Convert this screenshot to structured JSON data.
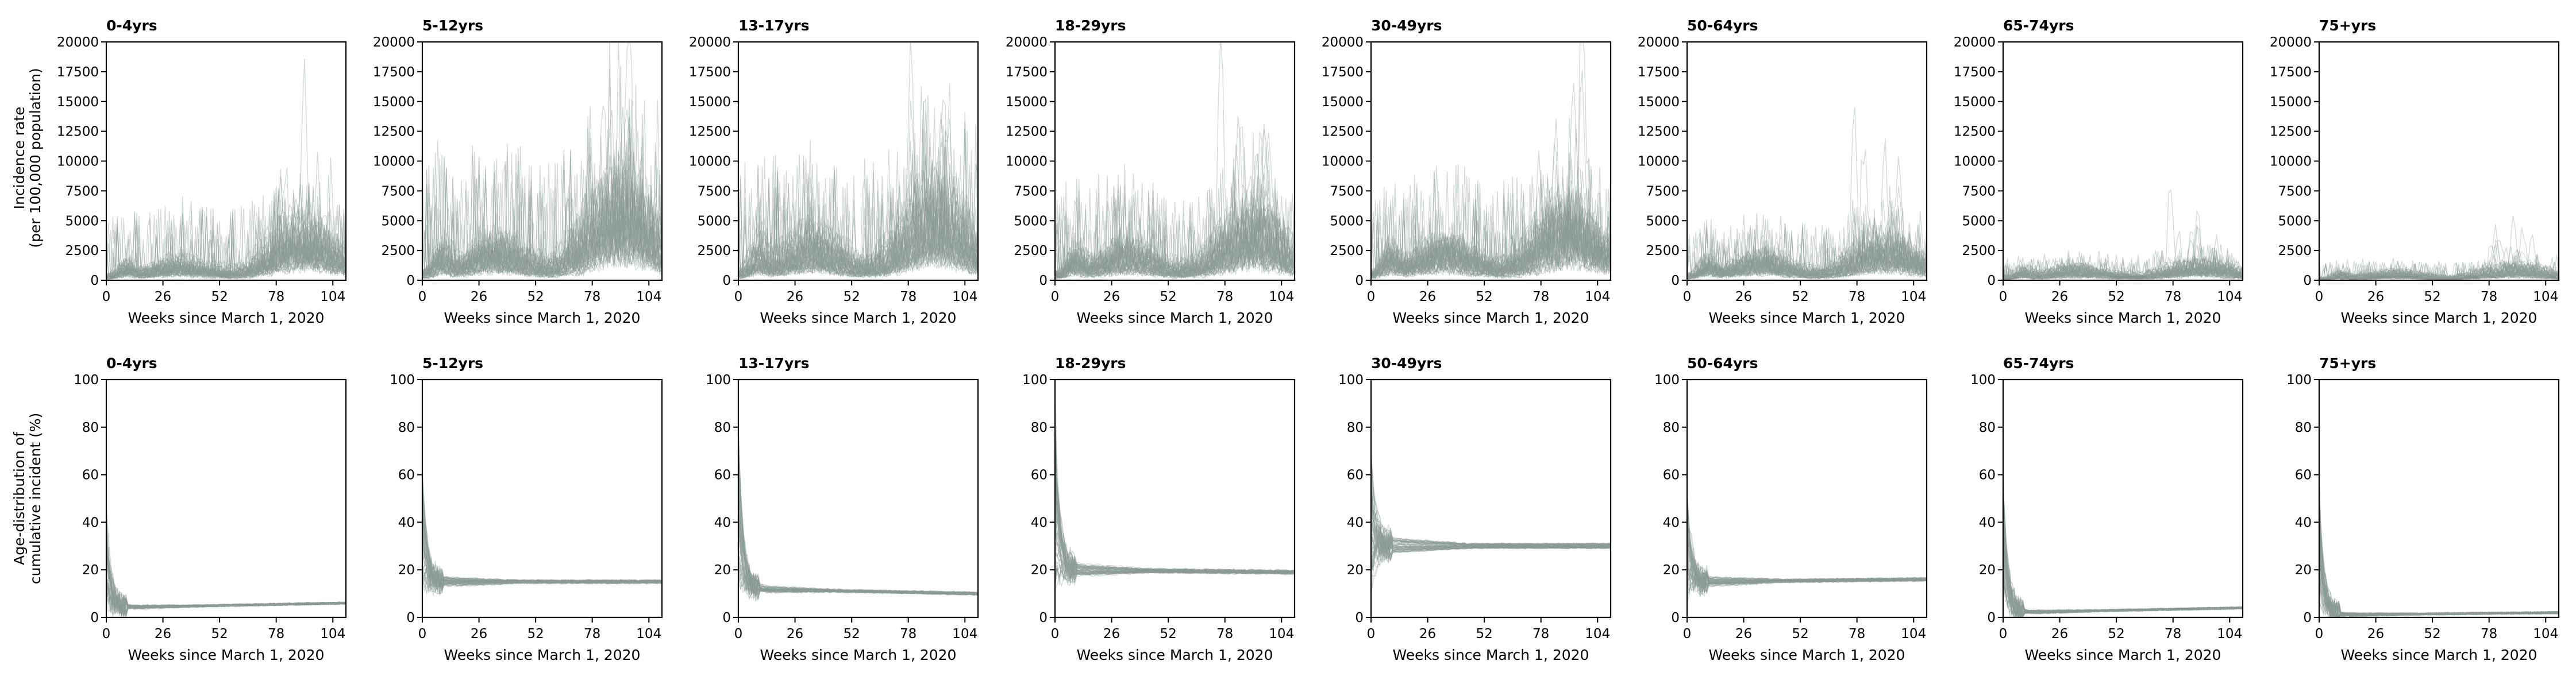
{
  "chart_data": {
    "type": "line",
    "panel_titles": [
      "0-4yrs",
      "5-12yrs",
      "13-17yrs",
      "18-29yrs",
      "30-49yrs",
      "50-64yrs",
      "65-74yrs",
      "75+yrs"
    ],
    "xlabel": "Weeks since March 1, 2020",
    "x_ticks": [
      0,
      26,
      52,
      78,
      104
    ],
    "xlim": [
      0,
      110
    ],
    "line_color": "#8c9a93",
    "rows": [
      {
        "ylabel_lines": [
          "Incidence rate",
          "(per 100,000 population)"
        ],
        "ylim": [
          0,
          20000
        ],
        "y_ticks": [
          0,
          2500,
          5000,
          7500,
          10000,
          12500,
          15000,
          17500,
          20000
        ],
        "panels": [
          {
            "title": "0-4yrs",
            "wave1_level": 900,
            "dip_level": 500,
            "wave2_level": 2400,
            "max_peak": 14700
          },
          {
            "title": "5-12yrs",
            "wave1_level": 1900,
            "dip_level": 800,
            "wave2_level": 4200,
            "max_peak": 19300
          },
          {
            "title": "13-17yrs",
            "wave1_level": 2300,
            "dip_level": 900,
            "wave2_level": 3800,
            "max_peak": 18900
          },
          {
            "title": "18-29yrs",
            "wave1_level": 1700,
            "dip_level": 700,
            "wave2_level": 2800,
            "max_peak": 17600
          },
          {
            "title": "30-49yrs",
            "wave1_level": 1900,
            "dip_level": 800,
            "wave2_level": 3000,
            "max_peak": 17900
          },
          {
            "title": "50-64yrs",
            "wave1_level": 1200,
            "dip_level": 500,
            "wave2_level": 1700,
            "max_peak": 14300
          },
          {
            "title": "65-74yrs",
            "wave1_level": 600,
            "dip_level": 300,
            "wave2_level": 700,
            "max_peak": 7400
          },
          {
            "title": "75+yrs",
            "wave1_level": 400,
            "dip_level": 200,
            "wave2_level": 600,
            "max_peak": 5200
          }
        ]
      },
      {
        "ylabel_lines": [
          "Age-distribution of",
          "cumulative incident (%)"
        ],
        "ylim": [
          0,
          100
        ],
        "y_ticks": [
          0,
          20,
          40,
          60,
          80,
          100
        ],
        "panels": [
          {
            "title": "0-4yrs",
            "start_high": 40,
            "settle_level": 4,
            "end_level": 6
          },
          {
            "title": "5-12yrs",
            "start_high": 55,
            "settle_level": 15,
            "end_level": 15
          },
          {
            "title": "13-17yrs",
            "start_high": 70,
            "settle_level": 12,
            "end_level": 10
          },
          {
            "title": "18-29yrs",
            "start_high": 80,
            "settle_level": 20,
            "end_level": 19
          },
          {
            "title": "30-49yrs",
            "start_high": 65,
            "settle_level": 30,
            "end_level": 30
          },
          {
            "title": "50-64yrs",
            "start_high": 48,
            "settle_level": 15,
            "end_level": 16
          },
          {
            "title": "65-74yrs",
            "start_high": 55,
            "settle_level": 2,
            "end_level": 4
          },
          {
            "title": "75+yrs",
            "start_high": 50,
            "settle_level": 1,
            "end_level": 2
          }
        ]
      }
    ]
  }
}
